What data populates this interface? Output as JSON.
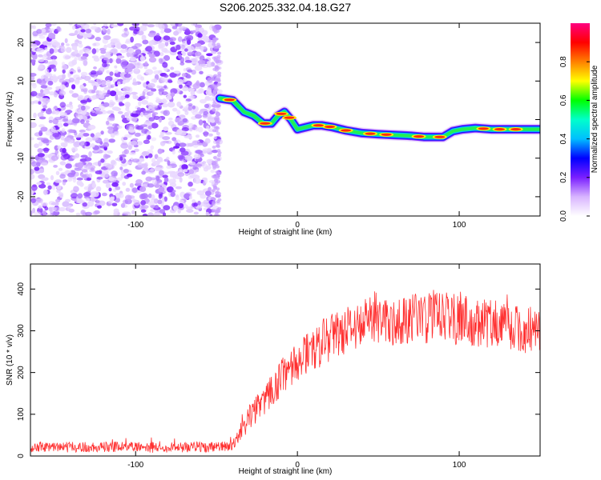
{
  "chart_data": [
    {
      "type": "heatmap",
      "title": "S206.2025.332.04.18.G27",
      "xlabel": "Height of straight line (km)",
      "ylabel": "Frequency (Hz)",
      "xlim": [
        -165,
        150
      ],
      "ylim": [
        -25,
        25
      ],
      "x_ticks": [
        -100,
        0,
        100
      ],
      "y_ticks": [
        -20,
        -10,
        0,
        10,
        20
      ],
      "colorbar": {
        "label": "Normalized spectral amplitude",
        "range": [
          0,
          1
        ],
        "ticks": [
          "0.0",
          "0.2",
          "0.4",
          "0.6",
          "0.8"
        ],
        "colors": [
          "#ffffff",
          "#d8b4ff",
          "#7a1fff",
          "#0000ff",
          "#00bfff",
          "#00ffcc",
          "#00ff00",
          "#ffff00",
          "#ff8000",
          "#ff0000",
          "#ff0080"
        ]
      },
      "noise_region_x": [
        -165,
        -48
      ],
      "signal_track": {
        "x": [
          -48,
          -40,
          -33,
          -27,
          -21,
          -16,
          -12,
          -8,
          -4,
          0,
          5,
          10,
          15,
          22,
          30,
          40,
          50,
          60,
          70,
          78,
          85,
          90,
          96,
          102,
          110,
          120,
          135,
          150
        ],
        "freq": [
          5.5,
          5,
          2,
          1,
          -1,
          -1,
          1,
          2,
          0,
          -2.5,
          -2,
          -1.5,
          -1.5,
          -2,
          -2.8,
          -3.5,
          -3.8,
          -4,
          -4.2,
          -4.5,
          -4.5,
          -4.5,
          -3,
          -2.5,
          -2.2,
          -2.5,
          -2.5,
          -2.5
        ],
        "peak_x": [
          -42,
          -20,
          -10,
          -5,
          13,
          20,
          30,
          45,
          55,
          75,
          88,
          115,
          125,
          135
        ]
      }
    },
    {
      "type": "line",
      "xlabel": "Height of straight line (km)",
      "ylabel": "SNR (10 * v/v)",
      "xlim": [
        -165,
        150
      ],
      "ylim": [
        0,
        460
      ],
      "x_ticks": [
        -100,
        0,
        100
      ],
      "y_ticks": [
        0,
        100,
        200,
        300,
        400
      ],
      "color": "#ff3030",
      "envelope": {
        "x": [
          -165,
          -120,
          -80,
          -50,
          -40,
          -35,
          -30,
          -20,
          -10,
          0,
          10,
          20,
          30,
          40,
          50,
          60,
          70,
          80,
          90,
          100,
          110,
          120,
          130,
          140,
          150
        ],
        "mean": [
          20,
          22,
          20,
          22,
          25,
          60,
          90,
          140,
          190,
          230,
          255,
          285,
          300,
          320,
          325,
          320,
          330,
          330,
          330,
          330,
          320,
          315,
          310,
          300,
          305
        ],
        "spread": [
          25,
          25,
          25,
          25,
          25,
          50,
          60,
          80,
          90,
          100,
          105,
          115,
          110,
          110,
          115,
          115,
          120,
          120,
          130,
          125,
          120,
          120,
          110,
          115,
          120
        ]
      }
    }
  ]
}
